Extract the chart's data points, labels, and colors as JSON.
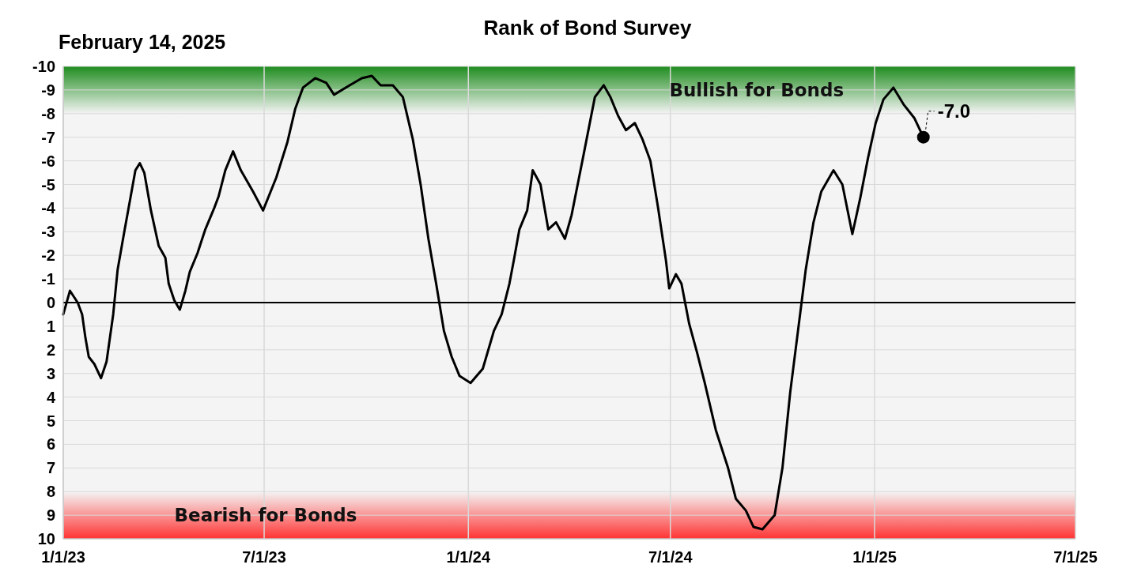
{
  "chart_data": {
    "type": "line",
    "title": "Rank of Bond Survey",
    "subtitle": "February 14, 2025",
    "x": [
      "2023-01-01",
      "2023-01-07",
      "2023-01-14",
      "2023-01-18",
      "2023-01-21",
      "2023-01-24",
      "2023-01-29",
      "2023-02-04",
      "2023-02-09",
      "2023-02-15",
      "2023-02-19",
      "2023-02-25",
      "2023-03-02",
      "2023-03-07",
      "2023-03-11",
      "2023-03-15",
      "2023-03-21",
      "2023-03-28",
      "2023-04-03",
      "2023-04-06",
      "2023-04-11",
      "2023-04-16",
      "2023-04-21",
      "2023-04-25",
      "2023-05-02",
      "2023-05-09",
      "2023-05-17",
      "2023-05-21",
      "2023-05-27",
      "2023-06-03",
      "2023-06-10",
      "2023-06-21",
      "2023-06-30",
      "2023-07-12",
      "2023-07-22",
      "2023-07-29",
      "2023-08-05",
      "2023-08-16",
      "2023-08-26",
      "2023-09-02",
      "2023-09-16",
      "2023-09-27",
      "2023-10-06",
      "2023-10-14",
      "2023-10-25",
      "2023-11-03",
      "2023-11-12",
      "2023-11-19",
      "2023-11-26",
      "2023-12-03",
      "2023-12-10",
      "2023-12-17",
      "2023-12-24",
      "2024-01-03",
      "2024-01-14",
      "2024-01-24",
      "2024-01-31",
      "2024-02-07",
      "2024-02-11",
      "2024-02-16",
      "2024-02-23",
      "2024-02-28",
      "2024-03-06",
      "2024-03-13",
      "2024-03-20",
      "2024-03-28",
      "2024-04-03",
      "2024-04-14",
      "2024-04-24",
      "2024-05-02",
      "2024-05-08",
      "2024-05-15",
      "2024-05-22",
      "2024-05-30",
      "2024-06-06",
      "2024-06-13",
      "2024-06-20",
      "2024-06-27",
      "2024-06-30",
      "2024-07-06",
      "2024-07-11",
      "2024-07-18",
      "2024-07-25",
      "2024-08-01",
      "2024-08-11",
      "2024-08-22",
      "2024-08-29",
      "2024-09-07",
      "2024-09-14",
      "2024-09-22",
      "2024-10-03",
      "2024-10-10",
      "2024-10-17",
      "2024-10-24",
      "2024-10-31",
      "2024-11-07",
      "2024-11-14",
      "2024-11-25",
      "2024-12-03",
      "2024-12-12",
      "2024-12-19",
      "2024-12-26",
      "2025-01-02",
      "2025-01-09",
      "2025-01-18",
      "2025-01-27",
      "2025-02-06",
      "2025-02-14"
    ],
    "series": [
      {
        "color": "#000000",
        "values": [
          0.5,
          -0.5,
          0,
          0.5,
          1.5,
          2.3,
          2.6,
          3.2,
          2.5,
          0.5,
          -1.4,
          -3,
          -4.3,
          -5.6,
          -5.9,
          -5.5,
          -3.9,
          -2.4,
          -1.9,
          -0.8,
          -0.1,
          0.3,
          -0.5,
          -1.3,
          -2.1,
          -3.1,
          -4,
          -4.5,
          -5.6,
          -6.4,
          -5.6,
          -4.7,
          -3.9,
          -5.3,
          -6.8,
          -8.2,
          -9.1,
          -9.5,
          -9.3,
          -8.8,
          -9.2,
          -9.5,
          -9.6,
          -9.2,
          -9.2,
          -8.7,
          -6.9,
          -5,
          -2.7,
          -0.8,
          1.2,
          2.3,
          3.1,
          3.4,
          2.8,
          1.2,
          0.5,
          -0.8,
          -1.8,
          -3.1,
          -3.9,
          -5.6,
          -5,
          -3.1,
          -3.4,
          -2.7,
          -3.7,
          -6.3,
          -8.7,
          -9.2,
          -8.7,
          -7.9,
          -7.3,
          -7.6,
          -6.9,
          -6,
          -4,
          -1.8,
          -0.6,
          -1.2,
          -0.8,
          0.9,
          2.1,
          3.4,
          5.4,
          7,
          8.3,
          8.8,
          9.5,
          9.6,
          9,
          7,
          3.8,
          1.2,
          -1.4,
          -3.4,
          -4.7,
          -5.6,
          -5,
          -2.9,
          -4.4,
          -6.1,
          -7.6,
          -8.6,
          -9.1,
          -8.4,
          -7.8,
          -7
        ]
      }
    ],
    "xlim": [
      "2023-01-01",
      "2025-07-01"
    ],
    "xticks": [
      {
        "value": "2023-01-01",
        "label": "1/1/23"
      },
      {
        "value": "2023-07-01",
        "label": "7/1/23"
      },
      {
        "value": "2024-01-01",
        "label": "1/1/24"
      },
      {
        "value": "2024-07-01",
        "label": "7/1/24"
      },
      {
        "value": "2025-01-01",
        "label": "1/1/25"
      },
      {
        "value": "2025-07-01",
        "label": "7/1/25"
      }
    ],
    "ylim": [
      10,
      -10
    ],
    "yticks": [
      -10,
      -9,
      -8,
      -7,
      -6,
      -5,
      -4,
      -3,
      -2,
      -1,
      0,
      1,
      2,
      3,
      4,
      5,
      6,
      7,
      8,
      9,
      10
    ],
    "grid": true,
    "marker": "none",
    "line_style": "solid",
    "ref_lines": [
      {
        "axis": "y",
        "value": 0,
        "color": "#000000"
      }
    ],
    "bands": [
      {
        "axis": "y",
        "from": -10,
        "to": -8,
        "label": "Bullish for Bonds",
        "color": "#1e8c1e"
      },
      {
        "axis": "y",
        "from": 10,
        "to": 8,
        "label": "Bearish for Bonds",
        "color": "#ff3333"
      }
    ],
    "annotations": [
      {
        "text": "-7.0",
        "x": "2025-02-14",
        "y": -7
      }
    ]
  }
}
